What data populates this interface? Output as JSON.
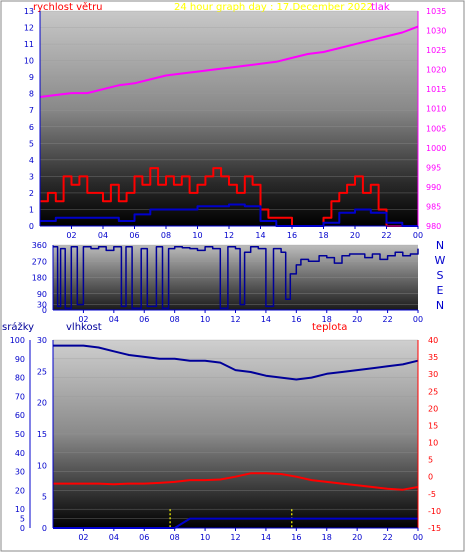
{
  "header": {
    "wind_label": "rychlost větru",
    "title": "24 hour graph day : 17.December 2022",
    "pressure_label": "tlak"
  },
  "panel3_labels": {
    "rain": "srážky",
    "humidity": "vlhkost",
    "temperature": "teplota"
  },
  "colors": {
    "wind": "#ff0000",
    "wind_avg": "#0000cc",
    "pressure": "#ff00ff",
    "direction": "#000099",
    "humidity": "#000099",
    "temperature": "#ff0000",
    "rain": "#0000cc",
    "title": "#ffff00",
    "axis_text": "#0000cc"
  },
  "chart_data": [
    {
      "type": "line",
      "panel": "wind_pressure",
      "xlabel": "",
      "x_ticks": [
        "02",
        "04",
        "06",
        "08",
        "10",
        "12",
        "14",
        "16",
        "18",
        "20",
        "22",
        "00"
      ],
      "xlim": [
        0,
        24
      ],
      "left_axis": {
        "label": "rychlost větru",
        "ylim": [
          0,
          13
        ],
        "ticks": [
          0,
          1,
          2,
          3,
          4,
          5,
          6,
          7,
          8,
          9,
          10,
          11,
          12,
          13
        ]
      },
      "right_axis": {
        "label": "tlak",
        "ylim": [
          980,
          1035
        ],
        "ticks": [
          980,
          985,
          990,
          995,
          1000,
          1005,
          1010,
          1015,
          1020,
          1025,
          1030,
          1035
        ]
      },
      "series": [
        {
          "name": "rychlost větru",
          "axis": "left",
          "x": [
            0,
            0.5,
            1,
            1.5,
            2,
            2.5,
            3,
            3.5,
            4,
            4.5,
            5,
            5.5,
            6,
            6.5,
            7,
            7.5,
            8,
            8.5,
            9,
            9.5,
            10,
            10.5,
            11,
            11.5,
            12,
            12.5,
            13,
            13.5,
            14,
            14.5,
            15,
            15.5,
            16,
            16.5,
            17,
            17.5,
            18,
            18.5,
            19,
            19.5,
            20,
            20.5,
            21,
            21.5,
            22,
            22.5,
            23,
            23.5,
            24
          ],
          "values": [
            1.5,
            2,
            1.5,
            3,
            2.5,
            3,
            2,
            2,
            1.5,
            2.5,
            1.5,
            2,
            3,
            2.5,
            3.5,
            2.5,
            3,
            2.5,
            3,
            2,
            2.5,
            3,
            3.5,
            3,
            2.5,
            2,
            3,
            2.5,
            1,
            0.5,
            0.5,
            0.5,
            0,
            0,
            0,
            0,
            0.5,
            1.5,
            2,
            2.5,
            3,
            2,
            2.5,
            1,
            0,
            0,
            0,
            0,
            0
          ]
        },
        {
          "name": "",
          "axis": "left",
          "x": [
            0,
            1,
            2,
            3,
            4,
            5,
            6,
            7,
            8,
            9,
            10,
            11,
            12,
            13,
            14,
            15,
            16,
            17,
            18,
            19,
            20,
            21,
            22,
            23,
            24
          ],
          "values": [
            0.3,
            0.5,
            0.5,
            0.5,
            0.5,
            0.3,
            0.7,
            1,
            1,
            1,
            1.2,
            1.2,
            1.3,
            1.2,
            0.3,
            0,
            0,
            0,
            0.2,
            0.8,
            1,
            0.8,
            0.2,
            0,
            0
          ]
        },
        {
          "name": "tlak",
          "axis": "right",
          "x": [
            0,
            1,
            2,
            3,
            4,
            5,
            6,
            7,
            8,
            9,
            10,
            11,
            12,
            13,
            14,
            15,
            16,
            17,
            18,
            19,
            20,
            21,
            22,
            23,
            24
          ],
          "values": [
            1013,
            1013.5,
            1014,
            1014,
            1015,
            1016,
            1016.5,
            1017.5,
            1018.5,
            1019,
            1019.5,
            1020,
            1020.5,
            1021,
            1021.5,
            1022,
            1023,
            1024,
            1024.5,
            1025.5,
            1026.5,
            1027.5,
            1028.5,
            1029.5,
            1031
          ]
        }
      ]
    },
    {
      "type": "line",
      "panel": "wind_direction",
      "x_ticks": [
        "02",
        "04",
        "06",
        "08",
        "10",
        "12",
        "14",
        "16",
        "18",
        "20",
        "22",
        "00"
      ],
      "xlim": [
        0,
        24
      ],
      "ylim": [
        0,
        360
      ],
      "y_ticks": [
        0,
        30,
        90,
        180,
        270,
        360
      ],
      "compass": [
        "N",
        "W",
        "S",
        "E",
        "N"
      ],
      "series": [
        {
          "name": "",
          "x": [
            0,
            0.3,
            0.5,
            0.8,
            1.2,
            1.6,
            2,
            2.5,
            3,
            3.5,
            4,
            4.5,
            4.8,
            5.2,
            5.8,
            6.2,
            6.8,
            7.2,
            7.6,
            8,
            8.5,
            9,
            9.5,
            10,
            10.5,
            11,
            11.5,
            12,
            12.3,
            12.6,
            13,
            13.5,
            14,
            14.5,
            15,
            15.3,
            15.6,
            16,
            16.3,
            16.8,
            17.5,
            18,
            18.5,
            19,
            19.5,
            20,
            20.5,
            21,
            21.5,
            22,
            22.5,
            23,
            23.5,
            24
          ],
          "values": [
            350,
            20,
            340,
            10,
            350,
            30,
            350,
            340,
            350,
            330,
            350,
            20,
            350,
            10,
            340,
            20,
            350,
            10,
            340,
            350,
            345,
            340,
            330,
            350,
            340,
            10,
            350,
            340,
            30,
            320,
            350,
            340,
            20,
            340,
            320,
            60,
            200,
            250,
            280,
            270,
            300,
            290,
            260,
            300,
            310,
            310,
            290,
            310,
            280,
            300,
            320,
            300,
            310,
            340
          ]
        }
      ]
    },
    {
      "type": "line",
      "panel": "humidity_temperature_rain",
      "x_ticks": [
        "02",
        "04",
        "06",
        "08",
        "10",
        "12",
        "14",
        "16",
        "18",
        "20",
        "22",
        "00"
      ],
      "xlim": [
        0,
        24
      ],
      "left_outer_axis": {
        "label": "srážky",
        "ylim": [
          0,
          100
        ],
        "ticks": [
          0,
          5,
          10,
          20,
          30,
          40,
          50,
          60,
          70,
          80,
          90,
          100
        ]
      },
      "left_inner_axis": {
        "label": "vlhkost",
        "ylim": [
          0,
          30
        ],
        "ticks": [
          0,
          5,
          10,
          15,
          20,
          25,
          30
        ]
      },
      "right_axis": {
        "label": "teplota",
        "ylim": [
          -15,
          40
        ],
        "ticks": [
          -15,
          -10,
          -5,
          0,
          5,
          10,
          15,
          20,
          25,
          30,
          35,
          40
        ]
      },
      "series": [
        {
          "name": "vlhkost",
          "axis": "left_outer",
          "x": [
            0,
            1,
            2,
            3,
            4,
            5,
            6,
            7,
            8,
            9,
            10,
            11,
            12,
            13,
            14,
            15,
            16,
            17,
            18,
            19,
            20,
            21,
            22,
            23,
            24
          ],
          "values": [
            97,
            97,
            97,
            96,
            94,
            92,
            91,
            90,
            90,
            89,
            89,
            88,
            84,
            83,
            81,
            80,
            79,
            80,
            82,
            83,
            84,
            85,
            86,
            87,
            89
          ]
        },
        {
          "name": "teplota",
          "axis": "right",
          "x": [
            0,
            1,
            2,
            3,
            4,
            5,
            6,
            7,
            8,
            9,
            10,
            11,
            12,
            13,
            14,
            15,
            16,
            17,
            18,
            19,
            20,
            21,
            22,
            23,
            24
          ],
          "values": [
            -2,
            -2,
            -2,
            -2,
            -2.2,
            -2,
            -2,
            -1.8,
            -1.5,
            -1,
            -1,
            -0.8,
            0,
            1,
            1,
            0.8,
            0,
            -1,
            -1.5,
            -2,
            -2.5,
            -3,
            -3.5,
            -3.8,
            -3
          ]
        },
        {
          "name": "srážky",
          "axis": "left_outer",
          "x": [
            0,
            7.8,
            8,
            9,
            10,
            12,
            14,
            16,
            18,
            20,
            22,
            24
          ],
          "values": [
            0,
            0,
            0,
            5,
            5,
            5,
            5,
            5,
            5,
            5,
            5,
            5
          ]
        }
      ]
    }
  ]
}
